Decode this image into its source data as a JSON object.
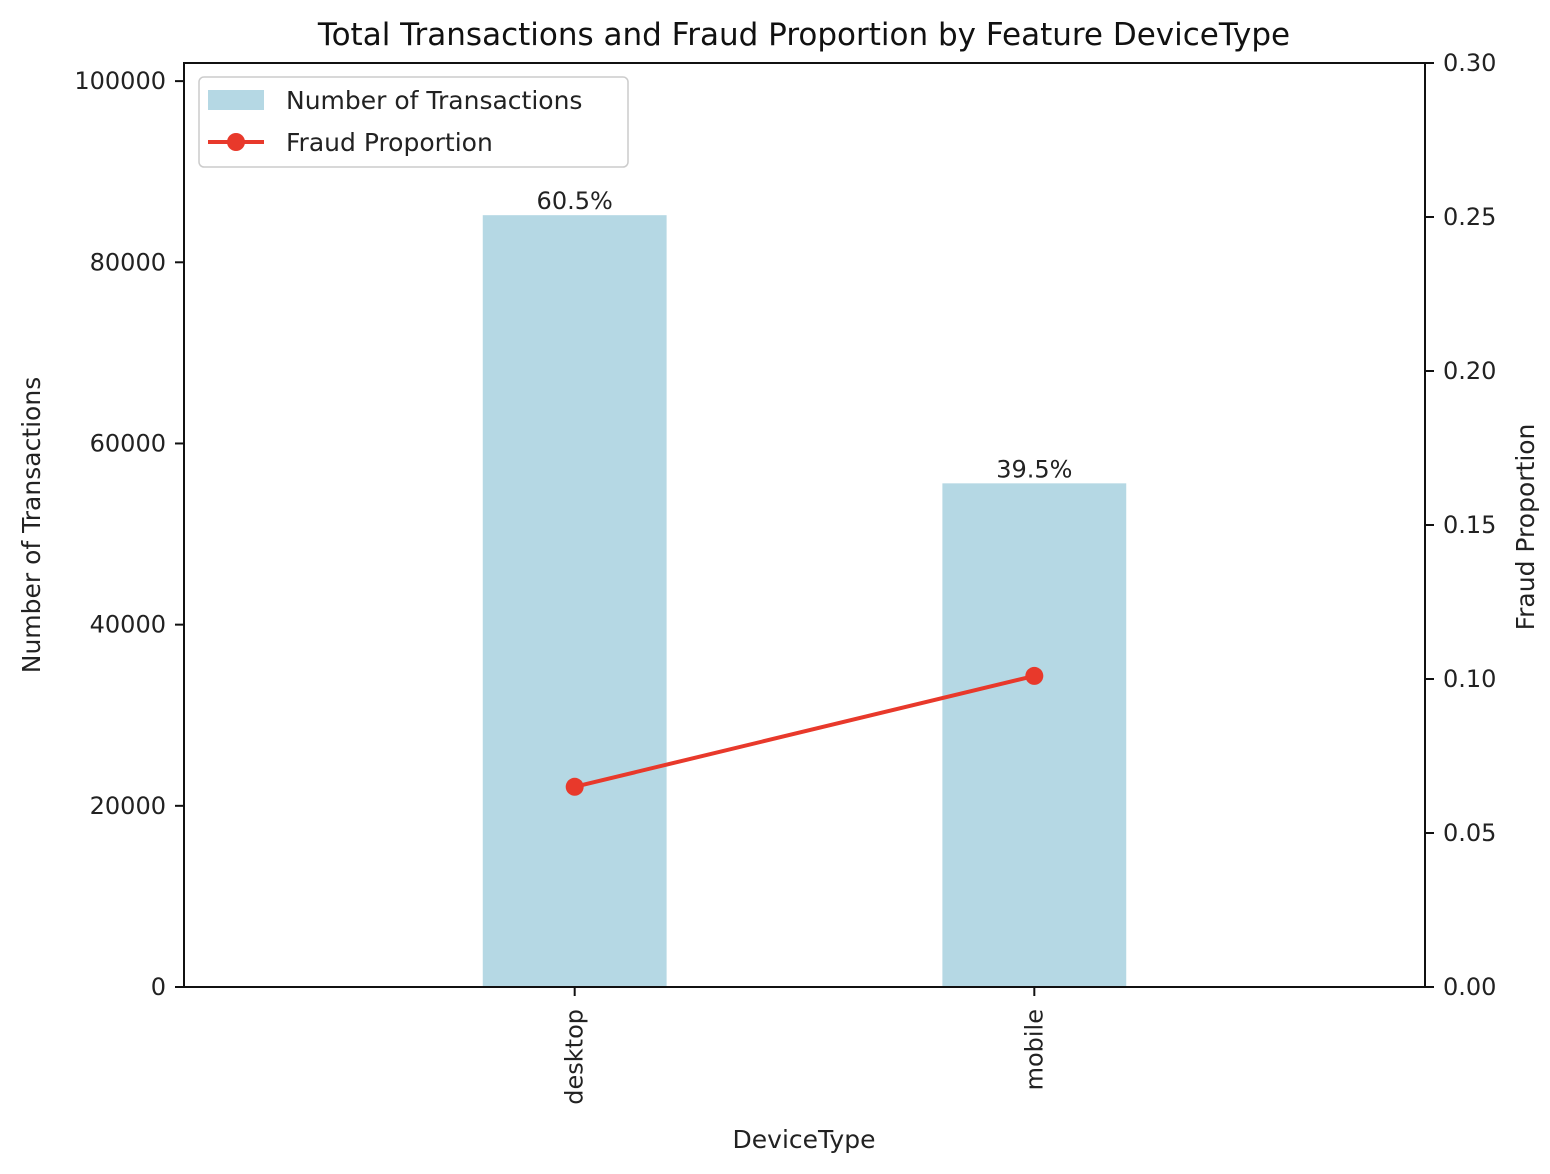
{
  "chart_data": {
    "type": "bar",
    "title": "Total Transactions and Fraud Proportion by Feature DeviceType",
    "xlabel": "DeviceType",
    "ylabel": "Number of Transactions",
    "y2label": "Fraud Proportion",
    "categories": [
      "desktop",
      "mobile"
    ],
    "ylim": [
      0,
      102000
    ],
    "y2lim": [
      0,
      0.3
    ],
    "yticks": [
      0,
      20000,
      40000,
      60000,
      80000,
      100000
    ],
    "y2ticks": [
      0.0,
      0.05,
      0.1,
      0.15,
      0.2,
      0.25,
      0.3
    ],
    "y2tick_labels": [
      "0.00",
      "0.05",
      "0.10",
      "0.15",
      "0.20",
      "0.25",
      "0.30"
    ],
    "legend_position": "top-left",
    "grid": false,
    "series": [
      {
        "name": "Number of Transactions",
        "type": "bar",
        "axis": "left",
        "values": [
          85200,
          55600
        ],
        "labels": [
          "60.5%",
          "39.5%"
        ],
        "color": "#b5d8e4"
      },
      {
        "name": "Fraud Proportion",
        "type": "line",
        "axis": "right",
        "values": [
          0.065,
          0.101
        ],
        "color": "#e8392b"
      }
    ]
  }
}
